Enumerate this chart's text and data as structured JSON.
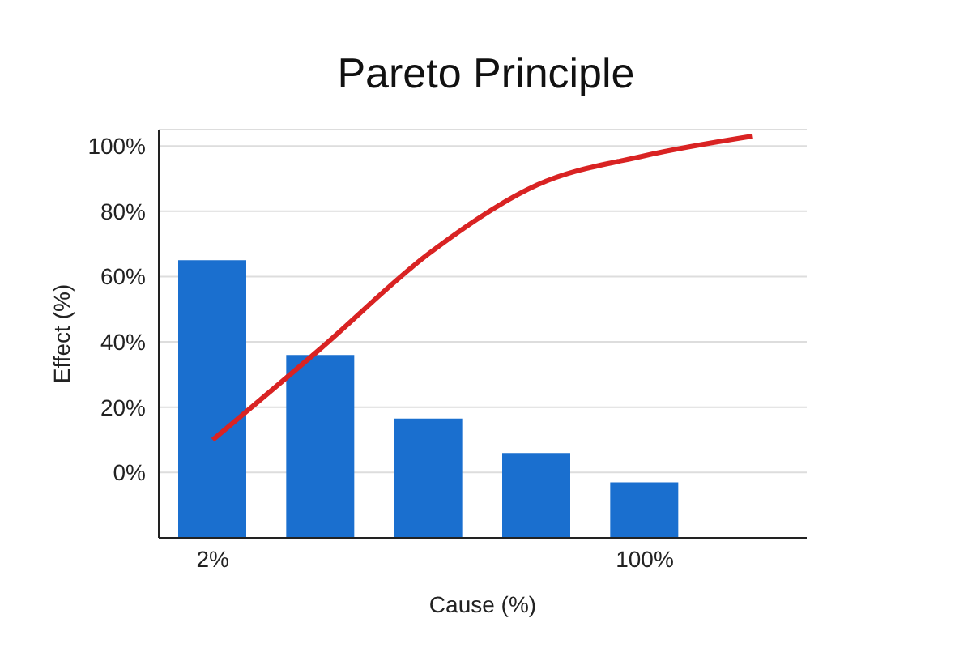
{
  "chart_data": {
    "type": "bar",
    "title": "Pareto Principle",
    "xlabel": "Cause (%)",
    "ylabel": "Effect (%)",
    "categories": [
      "2%",
      null,
      null,
      null,
      "100%",
      null
    ],
    "series": [
      {
        "color": "#1a6fcf",
        "values": [
          85,
          56,
          36.5,
          26,
          17,
          null
        ],
        "base": [
          -20,
          -20,
          -20,
          -20,
          -20,
          null
        ]
      },
      {
        "type": "line",
        "color": "#d92323",
        "values": [
          10,
          38,
          67,
          88,
          97,
          103
        ]
      }
    ],
    "ylim": [
      -20,
      105
    ],
    "yticks": [
      {
        "value": 0,
        "label": "0%"
      },
      {
        "value": 20,
        "label": "20%"
      },
      {
        "value": 40,
        "label": "40%"
      },
      {
        "value": 60,
        "label": "60%"
      },
      {
        "value": 80,
        "label": "80%"
      },
      {
        "value": 100,
        "label": "100%"
      }
    ],
    "grid": "y",
    "marker": "none",
    "line_style": "solid"
  }
}
